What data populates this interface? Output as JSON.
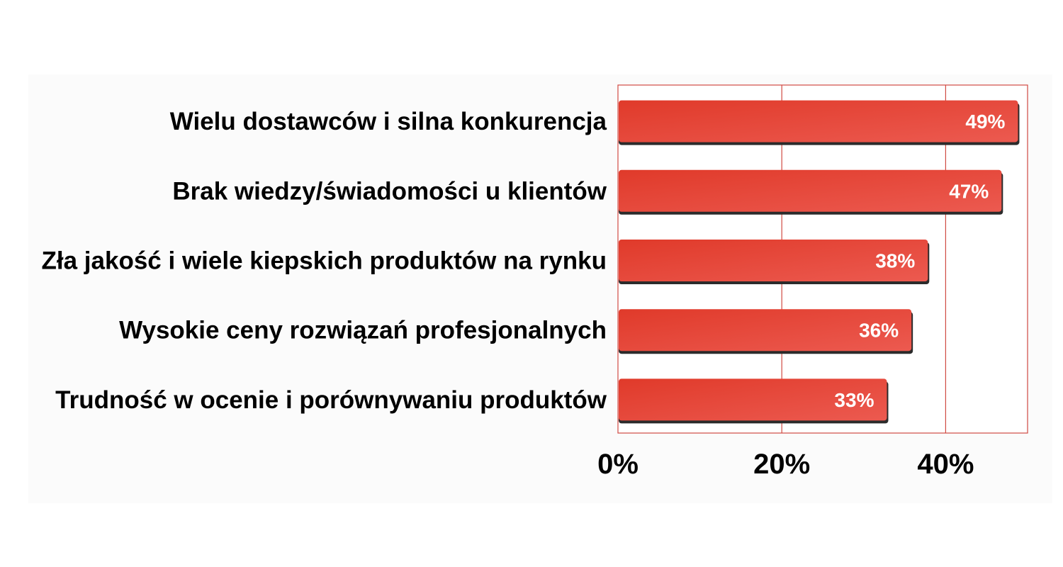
{
  "chart_data": {
    "type": "bar",
    "orientation": "horizontal",
    "categories": [
      "Wielu dostawców i silna konkurencja",
      "Brak wiedzy/świadomości u klientów",
      "Zła jakość i wiele kiepskich produktów na rynku",
      "Wysokie ceny rozwiązań profesjonalnych",
      "Trudność w ocenie i porównywaniu produktów"
    ],
    "values": [
      49,
      47,
      38,
      36,
      33
    ],
    "data_labels": [
      "49%",
      "47%",
      "38%",
      "36%",
      "33%"
    ],
    "title": "",
    "xlabel": "",
    "ylabel": "",
    "xlim": [
      0,
      50
    ],
    "xticks": [
      0,
      20,
      40
    ],
    "xtick_labels": [
      "0%",
      "20%",
      "40%"
    ],
    "grid": true,
    "legend": "none",
    "colors": {
      "bar": "#e8483a",
      "bar_light": "#ec5a50",
      "bar_dark": "#e03a2a",
      "bar_shadow": "#2b2b2b",
      "gridline": "#d04a42",
      "plot_background": "#ffffff",
      "panel_background": "#fbfbfb",
      "data_label": "#ffffff",
      "text": "#000000"
    }
  }
}
